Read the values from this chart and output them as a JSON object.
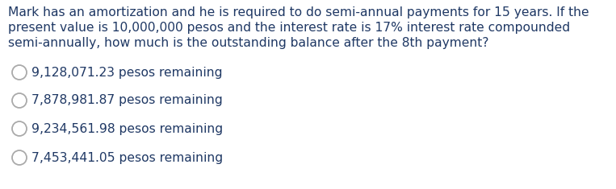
{
  "background_color": "#ffffff",
  "question_lines": [
    "Mark has an amortization and he is required to do semi-annual payments for 15 years. If the",
    "present value is 10,000,000 pesos and the interest rate is 17% interest rate compounded",
    "semi-annually, how much is the outstanding balance after the 8th payment?"
  ],
  "question_color": "#1f3864",
  "choices": [
    "9,128,071.23 pesos remaining",
    "7,878,981.87 pesos remaining",
    "9,234,561.98 pesos remaining",
    "7,453,441.05 pesos remaining"
  ],
  "choices_color": "#1f3864",
  "circle_color": "#aaaaaa",
  "question_fontsize": 11.2,
  "choices_fontsize": 11.2,
  "fig_width": 7.63,
  "fig_height": 2.35,
  "dpi": 100
}
